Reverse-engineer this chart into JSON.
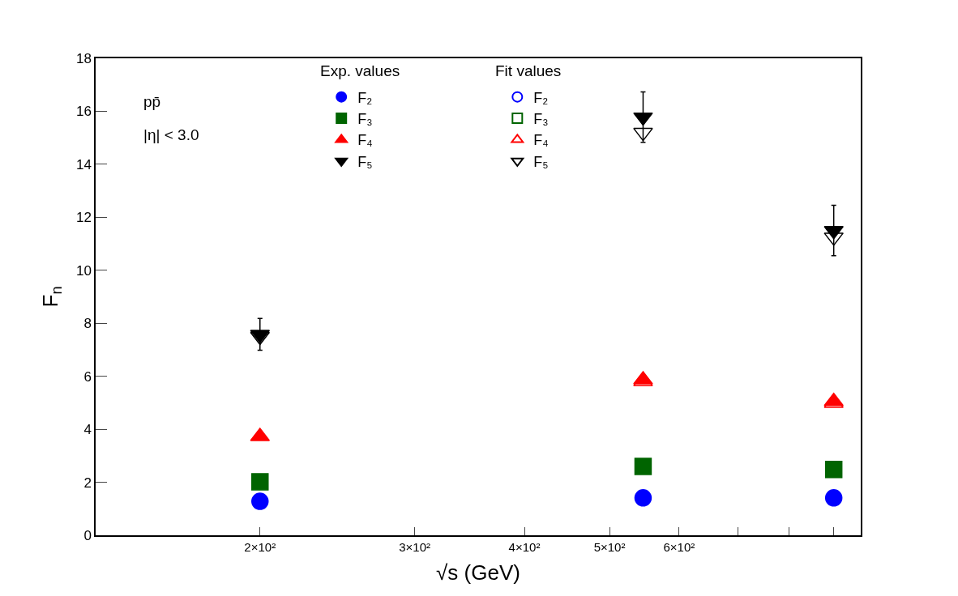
{
  "chart_data": {
    "type": "scatter",
    "xlabel": "√s (GeV)",
    "ylabel": "F$_{n}$",
    "x": [
      200,
      546,
      900
    ],
    "log": "x",
    "xlim": [
      130,
      966
    ],
    "xticks": [
      {
        "value": 200,
        "label": "2×10²"
      },
      {
        "value": 300,
        "label": "3×10²"
      },
      {
        "value": 400,
        "label": "4×10²"
      },
      {
        "value": 500,
        "label": "5×10²"
      },
      {
        "value": 600,
        "label": "6×10²"
      },
      {
        "value": 700,
        "label": null
      },
      {
        "value": 800,
        "label": null
      },
      {
        "value": 900,
        "label": null
      }
    ],
    "ylim": [
      0,
      18
    ],
    "yticks": [
      0,
      2,
      4,
      6,
      8,
      10,
      12,
      14,
      16,
      18
    ],
    "legend": "top",
    "annotations": [
      "Exp. values",
      "Fit values",
      "pp̄",
      "|η| < 3.0"
    ],
    "series": [
      {
        "name": "F₂",
        "color": "#0000ff",
        "marker": "circle",
        "values": [
          1.28,
          1.41,
          1.41
        ]
      },
      {
        "name": "F₃",
        "color": "#006400",
        "marker": "square",
        "values": [
          2.02,
          2.6,
          2.48
        ]
      },
      {
        "name": "F₄",
        "color": "#ff0000",
        "marker": "triangle",
        "values": [
          3.73,
          5.87,
          5.05
        ]
      },
      {
        "name": "F₅",
        "color": "#000000",
        "marker": "triangle-down",
        "values": [
          7.58,
          15.78,
          11.5
        ],
        "errors": [
          0.6,
          0.95,
          0.95
        ]
      },
      {
        "name": "F₂",
        "color": "#0000ff",
        "marker": "circle-open",
        "values": [
          null,
          null,
          null
        ]
      },
      {
        "name": "F₃",
        "color": "#006400",
        "marker": "square-open",
        "values": [
          null,
          null,
          null
        ]
      },
      {
        "name": "F₄",
        "color": "#ff0000",
        "marker": "triangle-open",
        "values": [
          null,
          5.8,
          4.98
        ]
      },
      {
        "name": "F₅",
        "color": "#000000",
        "marker": "triangle-down-open",
        "values": [
          7.5,
          15.2,
          11.25
        ]
      }
    ]
  }
}
